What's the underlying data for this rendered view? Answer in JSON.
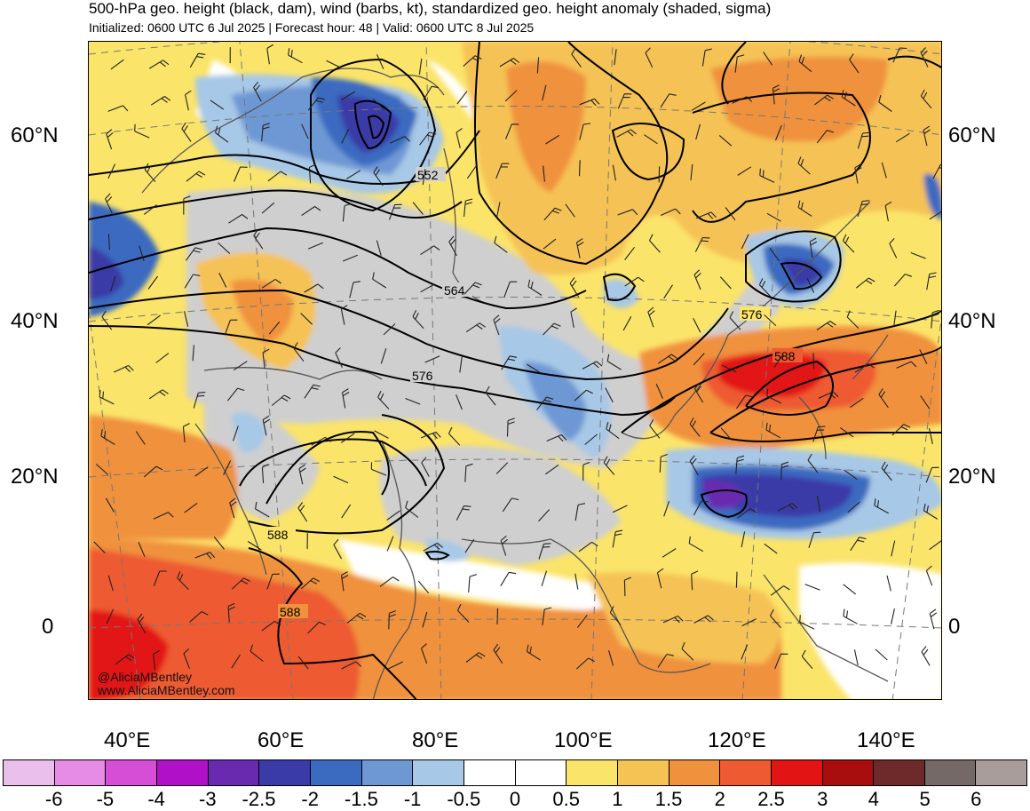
{
  "header": {
    "title": "500-hPa geo. height (black, dam), wind (barbs, kt), standardized geo. height anomaly (shaded, sigma)",
    "subtitle": "Initialized: 0600 UTC 6 Jul 2025 | Forecast hour: 48 | Valid: 0600 UTC 8 Jul 2025"
  },
  "map": {
    "region": "Asia / Indian Ocean / Western Pacific",
    "lat_labels_left": [
      "60°N",
      "40°N",
      "20°N",
      "0"
    ],
    "lat_labels_right": [
      "60°N",
      "40°N",
      "20°N",
      "0"
    ],
    "lon_labels": [
      "40°E",
      "60°E",
      "80°E",
      "100°E",
      "120°E",
      "140°E"
    ],
    "contour_labels": [
      "552",
      "564",
      "576",
      "576",
      "588",
      "588",
      "588"
    ],
    "credit_handle": "@AliciaMBentley",
    "credit_url": "www.AliciaMBentley.com"
  },
  "colorbar": {
    "tick_labels": [
      "-6",
      "-5",
      "-4",
      "-3",
      "-2.5",
      "-2",
      "-1.5",
      "-1",
      "-0.5",
      "0",
      "0.5",
      "1",
      "1.5",
      "2",
      "2.5",
      "3",
      "4",
      "5",
      "6"
    ],
    "colors": [
      "#ebbfeb",
      "#e68ce6",
      "#d64ed6",
      "#b010c8",
      "#6a2ab0",
      "#3a3aa8",
      "#3a6bc0",
      "#6e98d4",
      "#a7c8e6",
      "#ffffff",
      "#ffffff",
      "#fbe46a",
      "#f5c254",
      "#f0913e",
      "#ee5a32",
      "#e21414",
      "#a80e0e",
      "#6e2a2a",
      "#746966",
      "#a89d9b"
    ]
  }
}
